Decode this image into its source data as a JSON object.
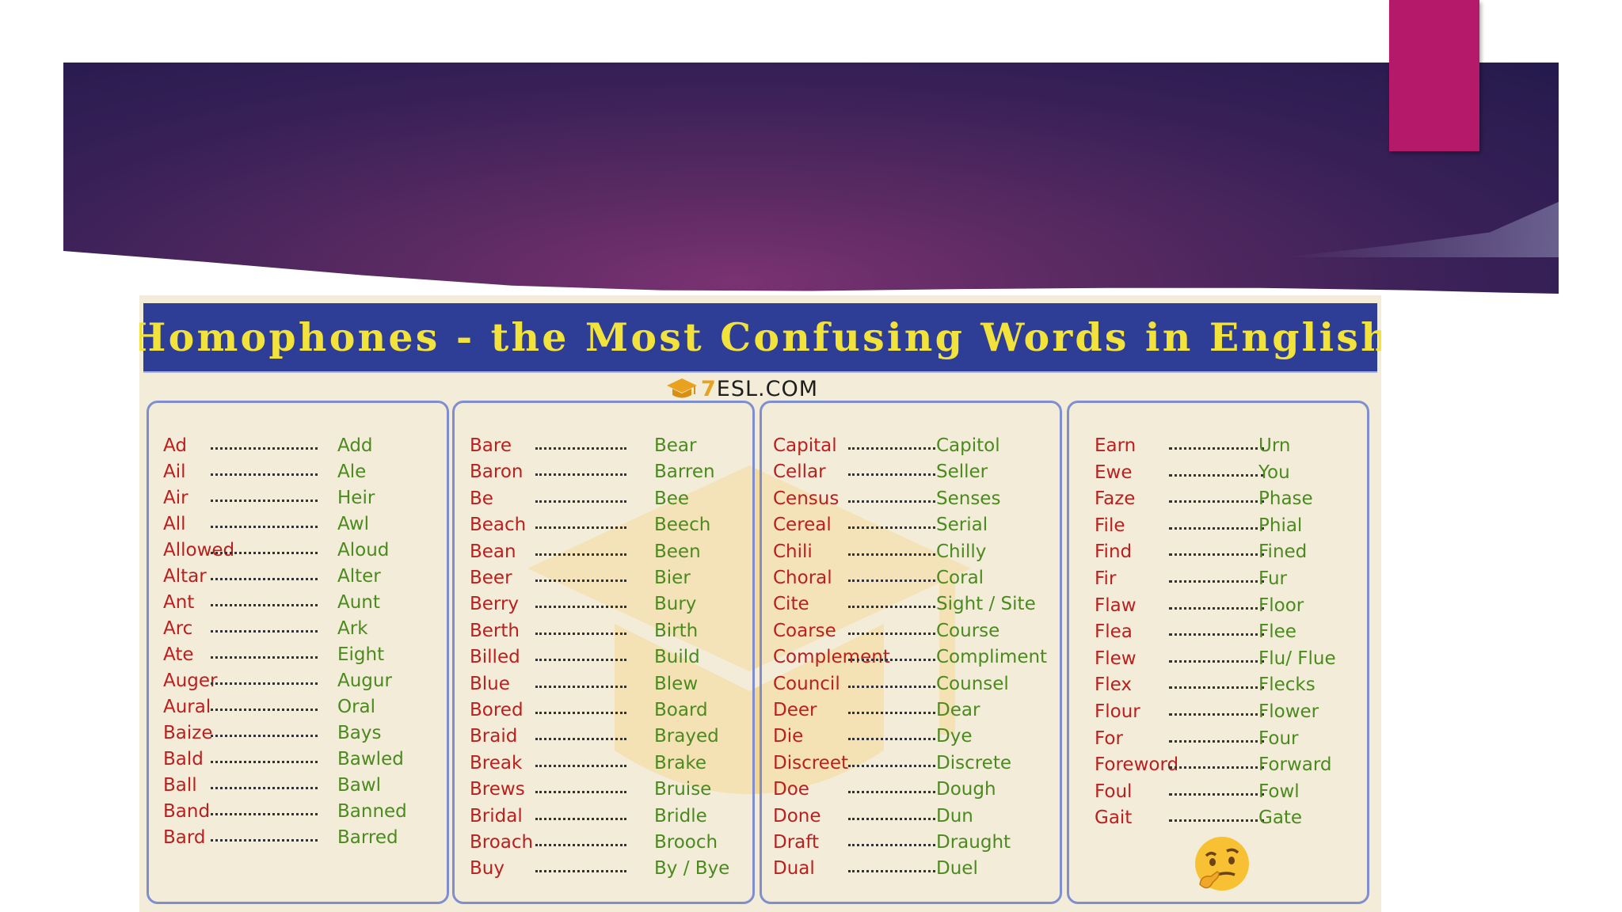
{
  "poster": {
    "title": "Homophones - the Most Confusing Words in English",
    "logo_seven": "7",
    "logo_text": "ESL.COM"
  },
  "columns": [
    [
      [
        "Ad",
        "Add"
      ],
      [
        "Ail",
        "Ale"
      ],
      [
        "Air",
        "Heir"
      ],
      [
        "All",
        "Awl"
      ],
      [
        "Allowed",
        "Aloud"
      ],
      [
        "Altar",
        "Alter"
      ],
      [
        "Ant",
        "Aunt"
      ],
      [
        "Arc",
        "Ark"
      ],
      [
        "Ate",
        "Eight"
      ],
      [
        "Auger",
        "Augur"
      ],
      [
        "Aural",
        "Oral"
      ],
      [
        "Baize",
        "Bays"
      ],
      [
        "Bald",
        "Bawled"
      ],
      [
        "Ball",
        "Bawl"
      ],
      [
        "Band",
        "Banned"
      ],
      [
        "Bard",
        "Barred"
      ]
    ],
    [
      [
        "Bare",
        "Bear"
      ],
      [
        "Baron",
        "Barren"
      ],
      [
        "Be",
        "Bee"
      ],
      [
        "Beach",
        "Beech"
      ],
      [
        "Bean",
        "Been"
      ],
      [
        "Beer",
        "Bier"
      ],
      [
        "Berry",
        "Bury"
      ],
      [
        "Berth",
        "Birth"
      ],
      [
        "Billed",
        "Build"
      ],
      [
        "Blue",
        "Blew"
      ],
      [
        "Bored",
        "Board"
      ],
      [
        "Braid",
        "Brayed"
      ],
      [
        "Break",
        "Brake"
      ],
      [
        "Brews",
        "Bruise"
      ],
      [
        "Bridal",
        "Bridle"
      ],
      [
        "Broach",
        "Brooch"
      ],
      [
        "Buy",
        "By / Bye"
      ]
    ],
    [
      [
        "Capital",
        "Capitol"
      ],
      [
        "Cellar",
        "Seller"
      ],
      [
        "Census",
        "Senses"
      ],
      [
        "Cereal",
        "Serial"
      ],
      [
        "Chili",
        "Chilly"
      ],
      [
        "Choral",
        "Coral"
      ],
      [
        "Cite",
        "Sight / Site"
      ],
      [
        "Coarse",
        "Course"
      ],
      [
        "Complement",
        "Compliment"
      ],
      [
        "Council",
        "Counsel"
      ],
      [
        "Deer",
        "Dear"
      ],
      [
        "Die",
        "Dye"
      ],
      [
        "Discreet",
        "Discrete"
      ],
      [
        "Doe",
        "Dough"
      ],
      [
        "Done",
        "Dun"
      ],
      [
        "Draft",
        "Draught"
      ],
      [
        "Dual",
        "Duel"
      ]
    ],
    [
      [
        "Earn",
        "Urn"
      ],
      [
        "Ewe",
        "You"
      ],
      [
        "Faze",
        "Phase"
      ],
      [
        "File",
        "Phial"
      ],
      [
        "Find",
        "Fined"
      ],
      [
        "Fir",
        "Fur"
      ],
      [
        "Flaw",
        "Floor"
      ],
      [
        "Flea",
        "Flee"
      ],
      [
        "Flew",
        "Flu/ Flue"
      ],
      [
        "Flex",
        "Flecks"
      ],
      [
        "Flour",
        "Flower"
      ],
      [
        "For",
        "Four"
      ],
      [
        "Foreword",
        "Forward"
      ],
      [
        "Foul",
        "Fowl"
      ],
      [
        "Gait",
        "Gate"
      ]
    ]
  ],
  "colors": {
    "banner_dark": "#241a4c",
    "banner_purple": "#7a3272",
    "accent_magenta": "#b51a6a",
    "title_bar": "#2e3d96",
    "title_text": "#f2e23c",
    "word_left": "#b9201f",
    "word_right": "#4b8a1e"
  },
  "icons": [
    "graduation-cap-icon",
    "thinking-face-icon"
  ]
}
